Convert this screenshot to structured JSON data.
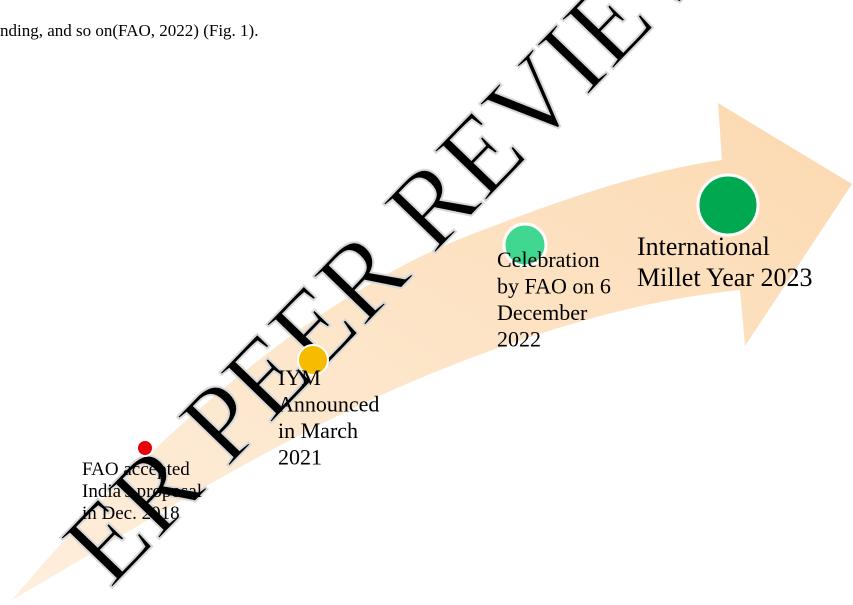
{
  "header": {
    "text": "nding, and so on(FAO, 2022) (Fig. 1)."
  },
  "watermark": "ER PEER REVIEW",
  "milestones": [
    {
      "lines": [
        "FAO accepted",
        "India's proposal",
        "in Dec. 2018"
      ]
    },
    {
      "lines": [
        "IYM",
        "Announced",
        "in March",
        "2021"
      ]
    },
    {
      "lines": [
        "Celebration",
        "by FAO on 6",
        "December",
        "2022"
      ]
    },
    {
      "lines": [
        "International",
        "Millet Year 2023"
      ]
    }
  ]
}
